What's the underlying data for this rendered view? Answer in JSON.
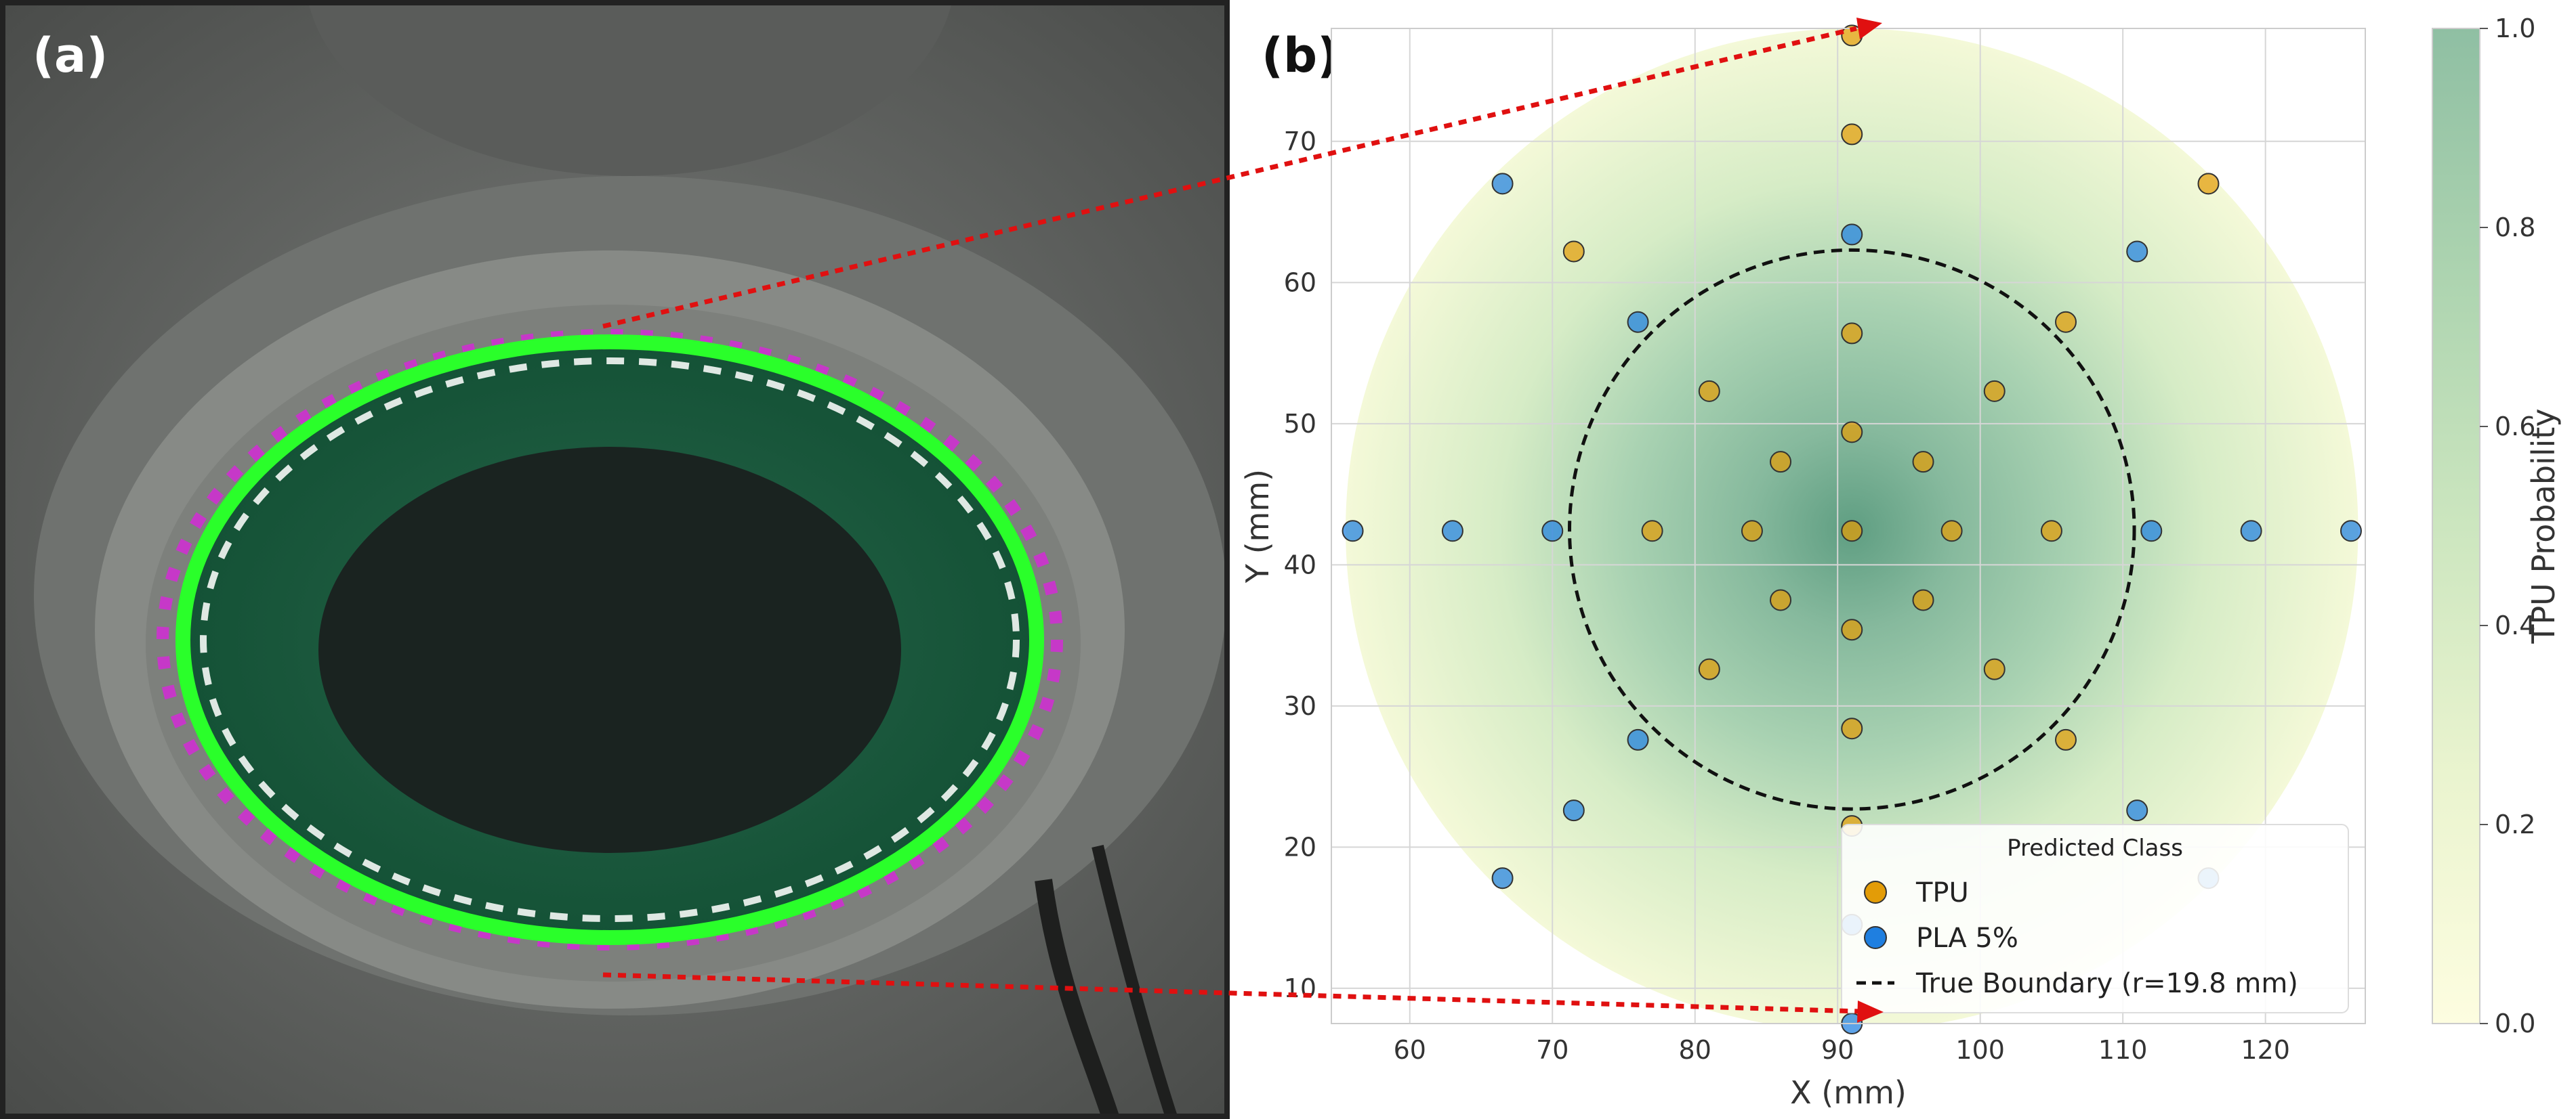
{
  "panel_a": {
    "label": "(a)"
  },
  "panel_b": {
    "label": "(b)"
  },
  "chart_data": {
    "type": "scatter",
    "xlabel": "X (mm)",
    "ylabel": "Y (mm)",
    "xlim": [
      54.5,
      127
    ],
    "ylim": [
      7.5,
      78
    ],
    "x_ticks": [
      60,
      70,
      80,
      90,
      100,
      110,
      120
    ],
    "y_ticks": [
      10,
      20,
      30,
      40,
      50,
      60,
      70
    ],
    "grid": true,
    "heatmap": {
      "center": [
        91,
        42.5
      ],
      "radius": 35.5,
      "colorbar_label": "TPU Probability",
      "colorbar_ticks": [
        "0.0",
        "0.2",
        "0.4",
        "0.6",
        "0.8",
        "1.0"
      ],
      "colors": {
        "low": "#fdfde0",
        "mid": "#cce6bf",
        "high": "#8fbfa3"
      }
    },
    "boundary": {
      "center": [
        91,
        42.5
      ],
      "radius": 19.8,
      "label": "True Boundary (r=19.8 mm)"
    },
    "series": [
      {
        "name": "TPU",
        "color": "#e39c07",
        "points": [
          [
            91,
            70.5
          ],
          [
            116,
            67
          ],
          [
            71.5,
            62.2
          ],
          [
            91,
            56.4
          ],
          [
            106,
            57.2
          ],
          [
            81,
            52.3
          ],
          [
            101,
            52.3
          ],
          [
            86,
            47.3
          ],
          [
            91,
            49.4
          ],
          [
            96,
            47.3
          ],
          [
            77,
            42.4
          ],
          [
            84,
            42.4
          ],
          [
            91,
            42.4
          ],
          [
            98,
            42.4
          ],
          [
            105,
            42.4
          ],
          [
            86,
            37.5
          ],
          [
            91,
            35.4
          ],
          [
            96,
            37.5
          ],
          [
            81,
            32.6
          ],
          [
            101,
            32.6
          ],
          [
            91,
            28.4
          ],
          [
            106,
            27.6
          ],
          [
            91,
            21.5
          ],
          [
            91,
            77.5
          ]
        ]
      },
      {
        "name": "PLA 5%",
        "color": "#1f7fe0",
        "points": [
          [
            66.5,
            67
          ],
          [
            91,
            63.4
          ],
          [
            111,
            62.2
          ],
          [
            76,
            57.2
          ],
          [
            56,
            42.4
          ],
          [
            63,
            42.4
          ],
          [
            70,
            42.4
          ],
          [
            112,
            42.4
          ],
          [
            119,
            42.4
          ],
          [
            126,
            42.4
          ],
          [
            76,
            27.6
          ],
          [
            71.5,
            22.6
          ],
          [
            111,
            22.6
          ],
          [
            66.5,
            17.8
          ],
          [
            116,
            17.8
          ],
          [
            91,
            14.5
          ],
          [
            91,
            7.5
          ]
        ]
      }
    ],
    "legend": {
      "title": "Predicted Class",
      "position": "lower-right"
    }
  }
}
